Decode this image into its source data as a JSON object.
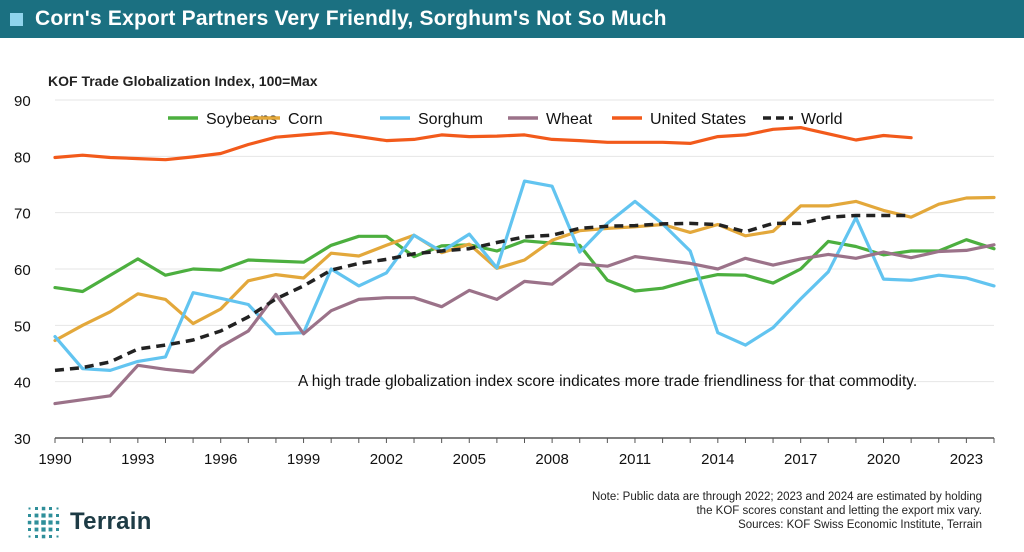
{
  "header": {
    "title": "Corn's Export Partners Very Friendly, Sorghum's Not So Much"
  },
  "footer": {
    "note_line1": "Note: Public data are through 2022; 2023 and 2024 are estimated by holding",
    "note_line2": "the KOF scores constant and letting the export mix vary.",
    "sources": "Sources: KOF Swiss Economic Institute, Terrain"
  },
  "logo": {
    "name": "Terrain",
    "color": "#2f8f9a"
  },
  "chart_data": {
    "type": "line",
    "title": "",
    "ylabel": "KOF Trade Globalization Index, 100=Max",
    "xlabel": "",
    "ylim": [
      30,
      90
    ],
    "xlim": [
      1990,
      2024
    ],
    "y_ticks": [
      30,
      40,
      50,
      60,
      70,
      80,
      90
    ],
    "x_ticks": [
      1990,
      1993,
      1996,
      1999,
      2002,
      2005,
      2008,
      2011,
      2014,
      2017,
      2020,
      2023
    ],
    "legend_position": "top",
    "annotation": "A high trade globalization index score indicates more trade friendliness for that commodity.",
    "x": [
      1990,
      1991,
      1992,
      1993,
      1994,
      1995,
      1996,
      1997,
      1998,
      1999,
      2000,
      2001,
      2002,
      2003,
      2004,
      2005,
      2006,
      2007,
      2008,
      2009,
      2010,
      2011,
      2012,
      2013,
      2014,
      2015,
      2016,
      2017,
      2018,
      2019,
      2020,
      2021,
      2022,
      2023,
      2024
    ],
    "series": [
      {
        "name": "Soybeans",
        "color": "#4caf3f",
        "dash": false,
        "values": [
          56.7,
          56.0,
          58.9,
          61.8,
          58.9,
          60.0,
          59.8,
          61.6,
          61.4,
          61.2,
          64.2,
          65.8,
          65.8,
          62.2,
          64.1,
          64.3,
          63.2,
          65.0,
          64.6,
          64.2,
          58.0,
          56.1,
          56.6,
          58.0,
          59.0,
          58.9,
          57.5,
          60.0,
          64.9,
          64.0,
          62.5,
          63.2,
          63.2,
          65.2,
          63.6
        ]
      },
      {
        "name": "Corn",
        "color": "#e3a83b",
        "dash": false,
        "values": [
          47.3,
          50.0,
          52.4,
          55.6,
          54.6,
          50.3,
          52.9,
          57.9,
          59.0,
          58.4,
          62.8,
          62.3,
          64.2,
          66.0,
          62.9,
          64.4,
          60.1,
          61.6,
          65.1,
          66.8,
          67.2,
          67.5,
          67.9,
          66.5,
          67.9,
          65.9,
          66.7,
          71.2,
          71.2,
          72.0,
          70.4,
          69.2,
          71.5,
          72.6,
          72.7
        ]
      },
      {
        "name": "Sorghum",
        "color": "#62c4f0",
        "dash": false,
        "values": [
          48.0,
          42.3,
          42.0,
          43.6,
          44.4,
          55.8,
          54.8,
          53.7,
          48.5,
          48.7,
          60.0,
          57.0,
          59.3,
          66.0,
          63.1,
          66.2,
          60.2,
          75.6,
          74.7,
          63.0,
          68.1,
          72.0,
          68.0,
          63.2,
          48.7,
          46.5,
          49.6,
          54.7,
          59.5,
          69.1,
          58.2,
          58.0,
          58.9,
          58.4,
          57.0
        ]
      },
      {
        "name": "Wheat",
        "color": "#9b7289",
        "dash": false,
        "values": [
          36.1,
          36.8,
          37.5,
          42.9,
          42.2,
          41.7,
          46.2,
          49.0,
          55.5,
          48.5,
          52.6,
          54.6,
          54.9,
          54.9,
          53.3,
          56.2,
          54.6,
          57.8,
          57.3,
          60.9,
          60.5,
          62.2,
          61.6,
          61.0,
          60.0,
          61.9,
          60.7,
          61.8,
          62.6,
          61.9,
          63.0,
          62.0,
          63.1,
          63.3,
          64.3
        ]
      },
      {
        "name": "United States",
        "color": "#f25a1b",
        "dash": false,
        "values": [
          79.8,
          80.2,
          79.8,
          79.6,
          79.4,
          79.9,
          80.5,
          82.1,
          83.4,
          83.8,
          84.2,
          83.5,
          82.8,
          83.0,
          83.8,
          83.5,
          83.6,
          83.8,
          83.0,
          82.8,
          82.5,
          82.5,
          82.5,
          82.3,
          83.5,
          83.8,
          84.8,
          85.1,
          84.0,
          82.9,
          83.7,
          83.3,
          null,
          null,
          null
        ]
      },
      {
        "name": "World",
        "color": "#222222",
        "dash": true,
        "values": [
          42.0,
          42.5,
          43.5,
          45.8,
          46.5,
          47.4,
          49.0,
          51.5,
          54.7,
          57.0,
          59.8,
          61.0,
          61.7,
          62.7,
          63.2,
          63.6,
          64.7,
          65.7,
          66.0,
          67.2,
          67.6,
          67.7,
          68.0,
          68.1,
          67.9,
          66.6,
          68.1,
          68.1,
          69.2,
          69.5,
          69.5,
          69.5,
          null,
          null,
          null
        ]
      }
    ]
  }
}
